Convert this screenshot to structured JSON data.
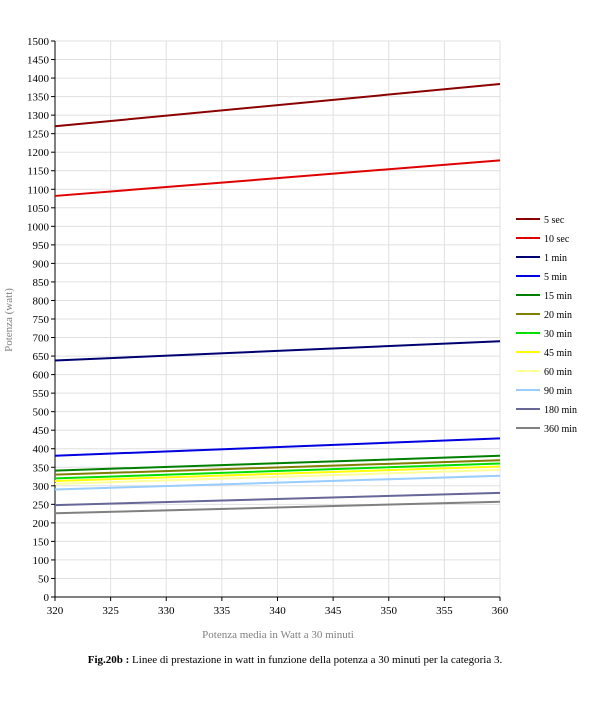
{
  "chart_data": {
    "type": "line",
    "title": "",
    "xlabel": "Potenza media in Watt a 30 minuti",
    "ylabel": "Potenza (watt)",
    "xlim": [
      320,
      360
    ],
    "ylim": [
      0,
      1500
    ],
    "x_ticks": [
      "320",
      "325",
      "330",
      "335",
      "340",
      "345",
      "350",
      "355",
      "360"
    ],
    "y_ticks": [
      "0",
      "50",
      "100",
      "150",
      "200",
      "250",
      "300",
      "350",
      "400",
      "450",
      "500",
      "550",
      "600",
      "650",
      "700",
      "750",
      "800",
      "850",
      "900",
      "950",
      "1000",
      "1050",
      "1100",
      "1150",
      "1200",
      "1250",
      "1300",
      "1350",
      "1400",
      "1450",
      "1500"
    ],
    "grid": true,
    "legend_position": "right",
    "x": [
      320,
      360
    ],
    "series": [
      {
        "name": "5 sec",
        "color": "#8b0000",
        "values": [
          1270,
          1384
        ]
      },
      {
        "name": "10 sec",
        "color": "#e00000",
        "values": [
          1082,
          1178
        ]
      },
      {
        "name": "1 min",
        "color": "#000070",
        "values": [
          638,
          690
        ]
      },
      {
        "name": "5 min",
        "color": "#0000e0",
        "values": [
          381,
          428
        ]
      },
      {
        "name": "15 min",
        "color": "#008000",
        "values": [
          341,
          381
        ]
      },
      {
        "name": "20 min",
        "color": "#808000",
        "values": [
          330,
          369
        ]
      },
      {
        "name": "30 min",
        "color": "#00e000",
        "values": [
          320,
          360
        ]
      },
      {
        "name": "45 min",
        "color": "#ffff00",
        "values": [
          313,
          352
        ]
      },
      {
        "name": "60 min",
        "color": "#ffff99",
        "values": [
          305,
          343
        ]
      },
      {
        "name": "90 min",
        "color": "#99ccff",
        "values": [
          290,
          327
        ]
      },
      {
        "name": "180 min",
        "color": "#666699",
        "values": [
          248,
          281
        ]
      },
      {
        "name": "360 min",
        "color": "#808080",
        "values": [
          226,
          257
        ]
      }
    ]
  },
  "caption": {
    "label": "Fig.20b :",
    "text": " Linee di prestazione in watt in funzione della potenza a 30 minuti per la categoria 3."
  }
}
